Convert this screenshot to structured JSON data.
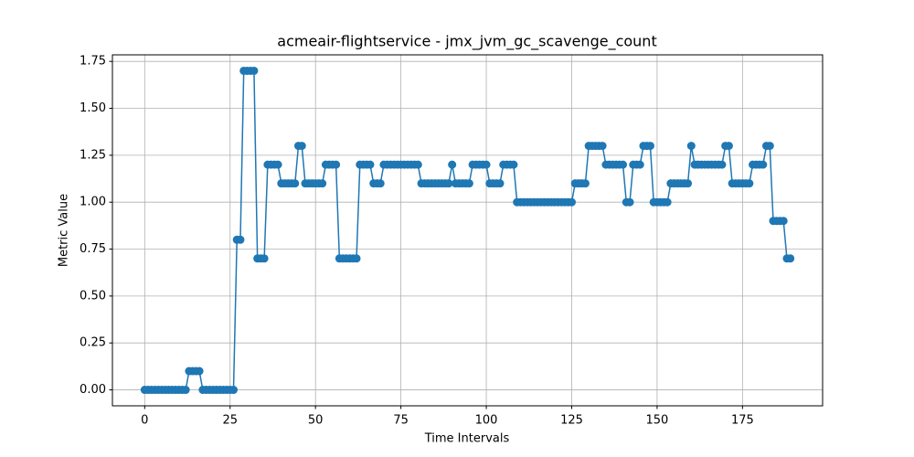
{
  "chart_data": {
    "type": "line",
    "title": "acmeair-flightservice - jmx_jvm_gc_scavenge_count",
    "xlabel": "Time Intervals",
    "ylabel": "Metric Value",
    "x": [
      0,
      1,
      2,
      3,
      4,
      5,
      6,
      7,
      8,
      9,
      10,
      11,
      12,
      13,
      14,
      15,
      16,
      17,
      18,
      19,
      20,
      21,
      22,
      23,
      24,
      25,
      26,
      27,
      28,
      29,
      30,
      31,
      32,
      33,
      34,
      35,
      36,
      37,
      38,
      39,
      40,
      41,
      42,
      43,
      44,
      45,
      46,
      47,
      48,
      49,
      50,
      51,
      52,
      53,
      54,
      55,
      56,
      57,
      58,
      59,
      60,
      61,
      62,
      63,
      64,
      65,
      66,
      67,
      68,
      69,
      70,
      71,
      72,
      73,
      74,
      75,
      76,
      77,
      78,
      79,
      80,
      81,
      82,
      83,
      84,
      85,
      86,
      87,
      88,
      89,
      90,
      91,
      92,
      93,
      94,
      95,
      96,
      97,
      98,
      99,
      100,
      101,
      102,
      103,
      104,
      105,
      106,
      107,
      108,
      109,
      110,
      111,
      112,
      113,
      114,
      115,
      116,
      117,
      118,
      119,
      120,
      121,
      122,
      123,
      124,
      125,
      126,
      127,
      128,
      129,
      130,
      131,
      132,
      133,
      134,
      135,
      136,
      137,
      138,
      139,
      140,
      141,
      142,
      143,
      144,
      145,
      146,
      147,
      148,
      149,
      150,
      151,
      152,
      153,
      154,
      155,
      156,
      157,
      158,
      159,
      160,
      161,
      162,
      163,
      164,
      165,
      166,
      167,
      168,
      169,
      170,
      171,
      172,
      173,
      174,
      175,
      176,
      177,
      178,
      179,
      180,
      181,
      182,
      183,
      184,
      185,
      186,
      187,
      188,
      189
    ],
    "series": [
      {
        "color": "#1f77b4",
        "values": [
          0,
          0,
          0,
          0,
          0,
          0,
          0,
          0,
          0,
          0,
          0,
          0,
          0,
          0.1,
          0.1,
          0.1,
          0.1,
          0,
          0,
          0,
          0,
          0,
          0,
          0,
          0,
          0,
          0,
          0.8,
          0.8,
          1.7,
          1.7,
          1.7,
          1.7,
          0.7,
          0.7,
          0.7,
          1.2,
          1.2,
          1.2,
          1.2,
          1.1,
          1.1,
          1.1,
          1.1,
          1.1,
          1.3,
          1.3,
          1.1,
          1.1,
          1.1,
          1.1,
          1.1,
          1.1,
          1.2,
          1.2,
          1.2,
          1.2,
          0.7,
          0.7,
          0.7,
          0.7,
          0.7,
          0.7,
          1.2,
          1.2,
          1.2,
          1.2,
          1.1,
          1.1,
          1.1,
          1.2,
          1.2,
          1.2,
          1.2,
          1.2,
          1.2,
          1.2,
          1.2,
          1.2,
          1.2,
          1.2,
          1.1,
          1.1,
          1.1,
          1.1,
          1.1,
          1.1,
          1.1,
          1.1,
          1.1,
          1.2,
          1.1,
          1.1,
          1.1,
          1.1,
          1.1,
          1.2,
          1.2,
          1.2,
          1.2,
          1.2,
          1.1,
          1.1,
          1.1,
          1.1,
          1.2,
          1.2,
          1.2,
          1.2,
          1.0,
          1.0,
          1.0,
          1.0,
          1.0,
          1.0,
          1.0,
          1.0,
          1.0,
          1.0,
          1.0,
          1.0,
          1.0,
          1.0,
          1.0,
          1.0,
          1.0,
          1.1,
          1.1,
          1.1,
          1.1,
          1.3,
          1.3,
          1.3,
          1.3,
          1.3,
          1.2,
          1.2,
          1.2,
          1.2,
          1.2,
          1.2,
          1.0,
          1.0,
          1.2,
          1.2,
          1.2,
          1.3,
          1.3,
          1.3,
          1.0,
          1.0,
          1.0,
          1.0,
          1.0,
          1.1,
          1.1,
          1.1,
          1.1,
          1.1,
          1.1,
          1.3,
          1.2,
          1.2,
          1.2,
          1.2,
          1.2,
          1.2,
          1.2,
          1.2,
          1.2,
          1.3,
          1.3,
          1.1,
          1.1,
          1.1,
          1.1,
          1.1,
          1.1,
          1.2,
          1.2,
          1.2,
          1.2,
          1.3,
          1.3,
          0.9,
          0.9,
          0.9,
          0.9,
          0.7,
          0.7
        ]
      }
    ],
    "xlim": [
      -9.45,
      198.45
    ],
    "xticks": [
      0,
      25,
      50,
      75,
      100,
      125,
      150,
      175
    ],
    "ylim": [
      -0.085,
      1.785
    ],
    "yticks": [
      {
        "value": 0,
        "label": "0.00"
      },
      {
        "value": 0.25,
        "label": "0.25"
      },
      {
        "value": 0.5,
        "label": "0.50"
      },
      {
        "value": 0.75,
        "label": "0.75"
      },
      {
        "value": 1,
        "label": "1.00"
      },
      {
        "value": 1.25,
        "label": "1.25"
      },
      {
        "value": 1.5,
        "label": "1.50"
      },
      {
        "value": 1.75,
        "label": "1.75"
      }
    ],
    "grid": true,
    "markers": true
  }
}
